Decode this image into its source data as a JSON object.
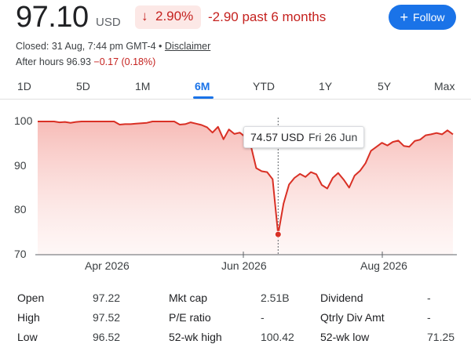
{
  "quote": {
    "price": "97.10",
    "currency": "USD",
    "change_arrow": "↓",
    "change_pct": "2.90%",
    "change_abs": "-2.90 past 6 months",
    "closed_text": "Closed: 31 Aug, 7:44 pm GMT-4 •",
    "disclaimer": "Disclaimer",
    "after_hours_label": "After hours 96.93",
    "after_hours_change": "−0.17 (0.18%)",
    "follow_label": "Follow",
    "follow_icon": "plus-icon"
  },
  "colors": {
    "negative": "#c5221f",
    "negative_bg": "#fce8e6",
    "accent": "#1a73e8",
    "line": "#d93025"
  },
  "tabs": [
    "1D",
    "5D",
    "1M",
    "6M",
    "YTD",
    "1Y",
    "5Y",
    "Max"
  ],
  "active_tab": "6M",
  "tooltip": {
    "value": "74.57 USD",
    "date": "Fri 26 Jun"
  },
  "chart_data": {
    "type": "area",
    "yticks": [
      "100",
      "90",
      "80",
      "70"
    ],
    "ylim": [
      70,
      100
    ],
    "xticks": [
      "Apr 2026",
      "Jun 2026",
      "Aug 2026"
    ],
    "grid": false,
    "highlight": {
      "date": "Fri 26 Jun",
      "value": 74.57
    },
    "series": [
      {
        "values": [
          100,
          100,
          100,
          100,
          99.8,
          99.9,
          99.7,
          99.9,
          100,
          100,
          100,
          100,
          100,
          100,
          100,
          99.3,
          99.4,
          99.4,
          99.5,
          99.6,
          99.7,
          100,
          100,
          100,
          100,
          100,
          99.3,
          99.4,
          99.8,
          99.5,
          99.2,
          98.7,
          97.5,
          98.8,
          96,
          98.2,
          97.2,
          97.5,
          96.5,
          94.6,
          89.5,
          88.8,
          88.6,
          87,
          74.57,
          81.5,
          85.8,
          87.3,
          88.2,
          87.5,
          88.6,
          88.1,
          85.7,
          84.9,
          87.3,
          88.4,
          86.9,
          85.1,
          87.8,
          88.9,
          90.6,
          93.4,
          94.3,
          95.2,
          94.6,
          95.4,
          95.7,
          94.5,
          94.3,
          95.6,
          95.9,
          96.9,
          97.1,
          97.4,
          97.1,
          98.0,
          97.1
        ]
      }
    ]
  },
  "stats": [
    {
      "label": "Open",
      "value": "97.22"
    },
    {
      "label": "High",
      "value": "97.52"
    },
    {
      "label": "Low",
      "value": "96.52"
    },
    {
      "label": "Mkt cap",
      "value": "2.51B"
    },
    {
      "label": "P/E ratio",
      "value": "-"
    },
    {
      "label": "52-wk high",
      "value": "100.42"
    },
    {
      "label": "Dividend",
      "value": "-"
    },
    {
      "label": "Qtrly Div Amt",
      "value": "-"
    },
    {
      "label": "52-wk low",
      "value": "71.25"
    }
  ]
}
